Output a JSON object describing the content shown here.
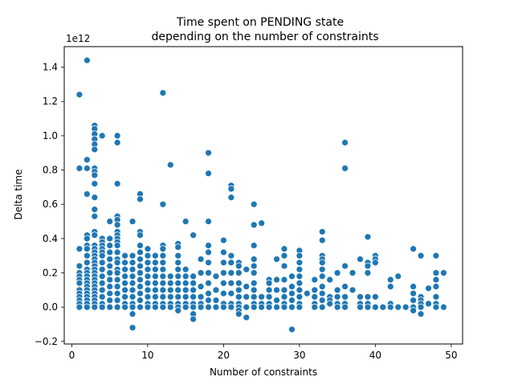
{
  "chart_data": {
    "type": "scatter",
    "title_line1": "Time spent on PENDING state",
    "title_line2": "depending on the number of constraints",
    "xlabel": "Number of constraints",
    "ylabel": "Delta time",
    "y_offset_label": "1e12",
    "xlim": [
      -1,
      51.5
    ],
    "ylim": [
      -0.215,
      1.52
    ],
    "xticks": [
      0,
      10,
      20,
      30,
      40,
      50
    ],
    "xtick_labels": [
      "0",
      "10",
      "20",
      "30",
      "40",
      "50"
    ],
    "yticks": [
      -0.2,
      0.0,
      0.2,
      0.4,
      0.6,
      0.8,
      1.0,
      1.2,
      1.4
    ],
    "ytick_labels": [
      "−0.2",
      "0.0",
      "0.2",
      "0.4",
      "0.6",
      "0.8",
      "1.0",
      "1.2",
      "1.4"
    ],
    "point_color": "#1f77b4",
    "point_edge": "#ffffff",
    "points_by_x": [
      {
        "x": 1,
        "y": [
          1.24,
          0.81,
          0.34,
          0.24,
          0.2,
          0.18,
          0.16,
          0.14,
          0.1,
          0.08,
          0.06,
          0.04,
          0.02,
          0.0
        ]
      },
      {
        "x": 2,
        "y": [
          1.44,
          0.86,
          0.81,
          0.66,
          0.42,
          0.4,
          0.36,
          0.34,
          0.3,
          0.26,
          0.22,
          0.2,
          0.18,
          0.16,
          0.14,
          0.12,
          0.1,
          0.08,
          0.06,
          0.04,
          0.02,
          0.0
        ]
      },
      {
        "x": 3,
        "y": [
          1.06,
          1.04,
          1.01,
          0.98,
          0.95,
          0.92,
          0.81,
          0.79,
          0.77,
          0.72,
          0.64,
          0.57,
          0.53,
          0.44,
          0.42,
          0.36,
          0.34,
          0.32,
          0.3,
          0.28,
          0.26,
          0.24,
          0.22,
          0.2,
          0.18,
          0.16,
          0.14,
          0.12,
          0.1,
          0.08,
          0.06,
          0.04,
          0.02,
          0.0
        ]
      },
      {
        "x": 4,
        "y": [
          1.0,
          0.4,
          0.38,
          0.36,
          0.34,
          0.32,
          0.3,
          0.26,
          0.22,
          0.18,
          0.14,
          0.1,
          0.06,
          0.02,
          0.0
        ]
      },
      {
        "x": 5,
        "y": [
          0.5,
          0.4,
          0.36,
          0.32,
          0.28,
          0.24,
          0.2,
          0.16,
          0.12,
          0.08,
          0.04,
          0.0
        ]
      },
      {
        "x": 6,
        "y": [
          1.0,
          0.96,
          0.72,
          0.53,
          0.51,
          0.48,
          0.44,
          0.42,
          0.4,
          0.38,
          0.36,
          0.32,
          0.28,
          0.26,
          0.22,
          0.2,
          0.16,
          0.12,
          0.08,
          0.04,
          0.0
        ]
      },
      {
        "x": 7,
        "y": [
          0.3,
          0.26,
          0.22,
          0.18,
          0.14,
          0.1,
          0.06,
          0.02,
          0.0
        ]
      },
      {
        "x": 8,
        "y": [
          0.5,
          0.3,
          0.26,
          0.22,
          0.18,
          0.14,
          0.1,
          0.06,
          0.02,
          0.0,
          -0.04,
          -0.12
        ]
      },
      {
        "x": 9,
        "y": [
          0.66,
          0.63,
          0.44,
          0.42,
          0.36,
          0.32,
          0.28,
          0.24,
          0.2,
          0.16,
          0.12,
          0.08,
          0.04,
          0.0
        ]
      },
      {
        "x": 10,
        "y": [
          0.34,
          0.3,
          0.26,
          0.22,
          0.18,
          0.14,
          0.1,
          0.06,
          0.02,
          0.0
        ]
      },
      {
        "x": 11,
        "y": [
          0.3,
          0.26,
          0.22,
          0.18,
          0.14,
          0.1,
          0.06,
          0.02,
          0.0
        ]
      },
      {
        "x": 12,
        "y": [
          1.25,
          0.6,
          0.36,
          0.34,
          0.3,
          0.26,
          0.22,
          0.18,
          0.14,
          0.1,
          0.06,
          0.02,
          0.0
        ]
      },
      {
        "x": 13,
        "y": [
          0.83,
          0.18,
          0.14,
          0.1,
          0.06,
          0.02,
          0.0
        ]
      },
      {
        "x": 14,
        "y": [
          0.37,
          0.35,
          0.3,
          0.26,
          0.22,
          0.18,
          0.14,
          0.1,
          0.06,
          0.02,
          0.0,
          -0.02
        ]
      },
      {
        "x": 15,
        "y": [
          0.5,
          0.22,
          0.18,
          0.14,
          0.1,
          0.06,
          0.02,
          0.0
        ]
      },
      {
        "x": 16,
        "y": [
          0.42,
          0.18,
          0.14,
          0.1,
          0.06,
          0.02,
          0.0,
          -0.04,
          -0.07
        ]
      },
      {
        "x": 17,
        "y": [
          0.28,
          0.2,
          0.12,
          0.06,
          0.02,
          0.0
        ]
      },
      {
        "x": 18,
        "y": [
          0.9,
          0.78,
          0.5,
          0.36,
          0.32,
          0.26,
          0.2,
          0.14,
          0.08,
          0.04,
          0.0
        ]
      },
      {
        "x": 19,
        "y": [
          0.18,
          0.1,
          0.04,
          0.0
        ]
      },
      {
        "x": 20,
        "y": [
          0.39,
          0.32,
          0.26,
          0.2,
          0.14,
          0.08,
          0.02,
          0.0
        ]
      },
      {
        "x": 21,
        "y": [
          0.71,
          0.69,
          0.64,
          0.3,
          0.26,
          0.2,
          0.14,
          0.08,
          0.02,
          0.0
        ]
      },
      {
        "x": 22,
        "y": [
          0.26,
          0.24,
          0.2,
          0.14,
          0.1,
          0.06,
          0.02,
          0.0,
          -0.02,
          -0.04
        ]
      },
      {
        "x": 23,
        "y": [
          0.22,
          0.12,
          0.06,
          0.0,
          -0.06
        ]
      },
      {
        "x": 24,
        "y": [
          0.6,
          0.48,
          0.36,
          0.28,
          0.24,
          0.2,
          0.14,
          0.1,
          0.06,
          0.02,
          0.0
        ]
      },
      {
        "x": 25,
        "y": [
          0.49,
          0.06,
          0.02,
          0.0
        ]
      },
      {
        "x": 26,
        "y": [
          0.16,
          0.14,
          0.1,
          0.06,
          0.02,
          0.0
        ]
      },
      {
        "x": 27,
        "y": [
          0.28,
          0.16,
          0.1,
          0.04,
          0.0
        ]
      },
      {
        "x": 28,
        "y": [
          0.34,
          0.3,
          0.24,
          0.16,
          0.1,
          0.06,
          0.02,
          0.0
        ]
      },
      {
        "x": 29,
        "y": [
          0.18,
          0.12,
          0.08,
          0.04,
          0.0,
          -0.13
        ]
      },
      {
        "x": 30,
        "y": [
          0.33,
          0.3,
          0.26,
          0.22,
          0.18,
          0.14,
          0.1,
          0.06,
          0.02,
          0.0
        ]
      },
      {
        "x": 31,
        "y": [
          0.08
        ]
      },
      {
        "x": 32,
        "y": [
          0.16,
          0.1,
          0.06,
          0.02,
          0.0
        ]
      },
      {
        "x": 33,
        "y": [
          0.44,
          0.39,
          0.3,
          0.28,
          0.26,
          0.22,
          0.18,
          0.12,
          0.08,
          0.04,
          0.0
        ]
      },
      {
        "x": 34,
        "y": [
          0.16,
          0.06,
          0.04,
          0.02
        ]
      },
      {
        "x": 35,
        "y": [
          0.2,
          0.1,
          0.06,
          0.02,
          0.0
        ]
      },
      {
        "x": 36,
        "y": [
          0.96,
          0.81,
          0.24,
          0.12,
          0.06,
          0.02,
          0.0
        ]
      },
      {
        "x": 37,
        "y": [
          0.2,
          0.1
        ]
      },
      {
        "x": 38,
        "y": [
          0.28,
          0.06,
          0.02,
          0.0
        ]
      },
      {
        "x": 39,
        "y": [
          0.41,
          0.26,
          0.24,
          0.2,
          0.06,
          0.02,
          0.0
        ]
      },
      {
        "x": 40,
        "y": [
          0.3,
          0.28,
          0.26,
          0.06,
          0.0
        ]
      },
      {
        "x": 41,
        "y": [
          0.0
        ]
      },
      {
        "x": 42,
        "y": [
          0.16,
          0.12,
          0.02,
          0.0
        ]
      },
      {
        "x": 43,
        "y": [
          0.18,
          0.0
        ]
      },
      {
        "x": 44,
        "y": [
          0.0
        ]
      },
      {
        "x": 45,
        "y": [
          0.34,
          0.12,
          0.08,
          0.04,
          0.0,
          -0.02
        ]
      },
      {
        "x": 46,
        "y": [
          0.3,
          0.06,
          0.04,
          0.02,
          0.0,
          -0.04
        ]
      },
      {
        "x": 47,
        "y": [
          0.11,
          0.02
        ]
      },
      {
        "x": 48,
        "y": [
          0.3,
          0.2,
          0.16,
          0.12,
          0.06,
          0.02,
          0.0
        ]
      },
      {
        "x": 49,
        "y": [
          0.2,
          0.0
        ]
      }
    ]
  }
}
